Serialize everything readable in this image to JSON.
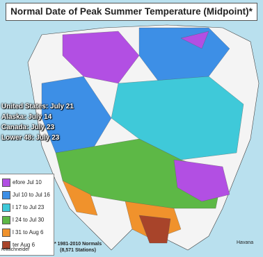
{
  "title": "Normal Date of Peak Summer Temperature (Midpoint)*",
  "stats": [
    "United States: July 21",
    "Alaska: July 14",
    "Canada: July 23",
    "Lower 48: July 23"
  ],
  "legend": {
    "items": [
      {
        "label": "efore Jul 10",
        "color": "#b24fe3"
      },
      {
        "label": "Jul 10 to Jul 16",
        "color": "#3d8fe6"
      },
      {
        "label": "l 17 to Jul 23",
        "color": "#3fc9d9"
      },
      {
        "label": "l 24 to Jul 30",
        "color": "#5db846"
      },
      {
        "label": "l 31 to Aug 6",
        "color": "#f0922c"
      },
      {
        "label": "ter Aug 6",
        "color": "#a8442a"
      }
    ]
  },
  "credit": "rettschneider",
  "footnote": [
    "* 1981-2010 Normals",
    "(8,571 Stations)"
  ],
  "places": [
    "Havana"
  ]
}
